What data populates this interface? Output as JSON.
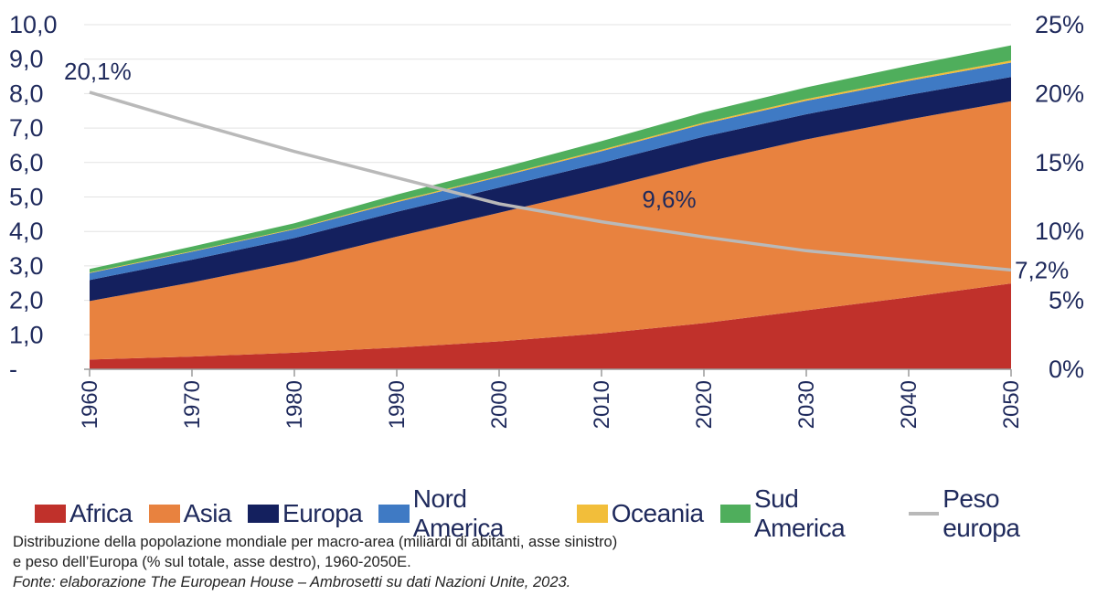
{
  "chart_data": {
    "type": "area",
    "stacked": true,
    "x": [
      1960,
      1970,
      1980,
      1990,
      2000,
      2010,
      2020,
      2030,
      2040,
      2050
    ],
    "x_tick_labels": [
      "1960",
      "1970",
      "1980",
      "1990",
      "2000",
      "2010",
      "2020",
      "2030",
      "2040",
      "2050"
    ],
    "y_left_ticks": [
      "-",
      "1,0",
      "2,0",
      "3,0",
      "4,0",
      "5,0",
      "6,0",
      "7,0",
      "8,0",
      "9,0",
      "10,0"
    ],
    "y_right_ticks": [
      "0%",
      "5%",
      "10%",
      "15%",
      "20%",
      "25%"
    ],
    "ylim_left": [
      0,
      10
    ],
    "ylim_right": [
      0,
      25
    ],
    "series": [
      {
        "name": "Africa",
        "color": "#c0312b",
        "values": [
          0.28,
          0.37,
          0.48,
          0.63,
          0.81,
          1.04,
          1.34,
          1.71,
          2.09,
          2.49
        ]
      },
      {
        "name": "Asia",
        "color": "#e8823f",
        "values": [
          1.7,
          2.15,
          2.64,
          3.22,
          3.73,
          4.21,
          4.66,
          4.96,
          5.16,
          5.29
        ]
      },
      {
        "name": "Europa",
        "color": "#14205e",
        "values": [
          0.61,
          0.66,
          0.69,
          0.72,
          0.73,
          0.74,
          0.75,
          0.73,
          0.71,
          0.7
        ]
      },
      {
        "name": "Nord America",
        "color": "#3f7ac4",
        "values": [
          0.2,
          0.23,
          0.25,
          0.28,
          0.31,
          0.34,
          0.37,
          0.39,
          0.41,
          0.42
        ]
      },
      {
        "name": "Oceania",
        "color": "#f2be3a",
        "values": [
          0.02,
          0.02,
          0.02,
          0.03,
          0.03,
          0.04,
          0.04,
          0.05,
          0.05,
          0.06
        ]
      },
      {
        "name": "Sud America",
        "color": "#4fae5c",
        "values": [
          0.1,
          0.13,
          0.16,
          0.19,
          0.22,
          0.25,
          0.3,
          0.34,
          0.39,
          0.44
        ]
      }
    ],
    "line": {
      "name": "Peso europa",
      "color": "#b9b9b9",
      "axis": "right",
      "values": [
        20.1,
        17.9,
        15.8,
        13.9,
        12.0,
        10.7,
        9.6,
        8.6,
        7.9,
        7.2
      ]
    },
    "annotations": [
      {
        "text": "20,1%",
        "x": 1960,
        "value": 20.1
      },
      {
        "text": "9,6%",
        "x": 2020,
        "value": 9.6
      },
      {
        "text": "7,2%",
        "x": 2050,
        "value": 7.2
      }
    ]
  },
  "legend": [
    {
      "label": "Africa",
      "color": "#c0312b",
      "kind": "box"
    },
    {
      "label": "Asia",
      "color": "#e8823f",
      "kind": "box"
    },
    {
      "label": "Europa",
      "color": "#14205e",
      "kind": "box"
    },
    {
      "label": "Nord America",
      "color": "#3f7ac4",
      "kind": "box"
    },
    {
      "label": "Oceania",
      "color": "#f2be3a",
      "kind": "box"
    },
    {
      "label": "Sud America",
      "color": "#4fae5c",
      "kind": "box"
    },
    {
      "label": "Peso europa",
      "color": "#b9b9b9",
      "kind": "line"
    }
  ],
  "caption": {
    "line1": "Distribuzione della popolazione mondiale per macro-area (miliardi di abitanti, asse sinistro)",
    "line2": "e peso dell’Europa (% sul totale, asse destro), 1960-2050E.",
    "source": "Fonte: elaborazione The European House – Ambrosetti su dati Nazioni Unite, 2023."
  }
}
